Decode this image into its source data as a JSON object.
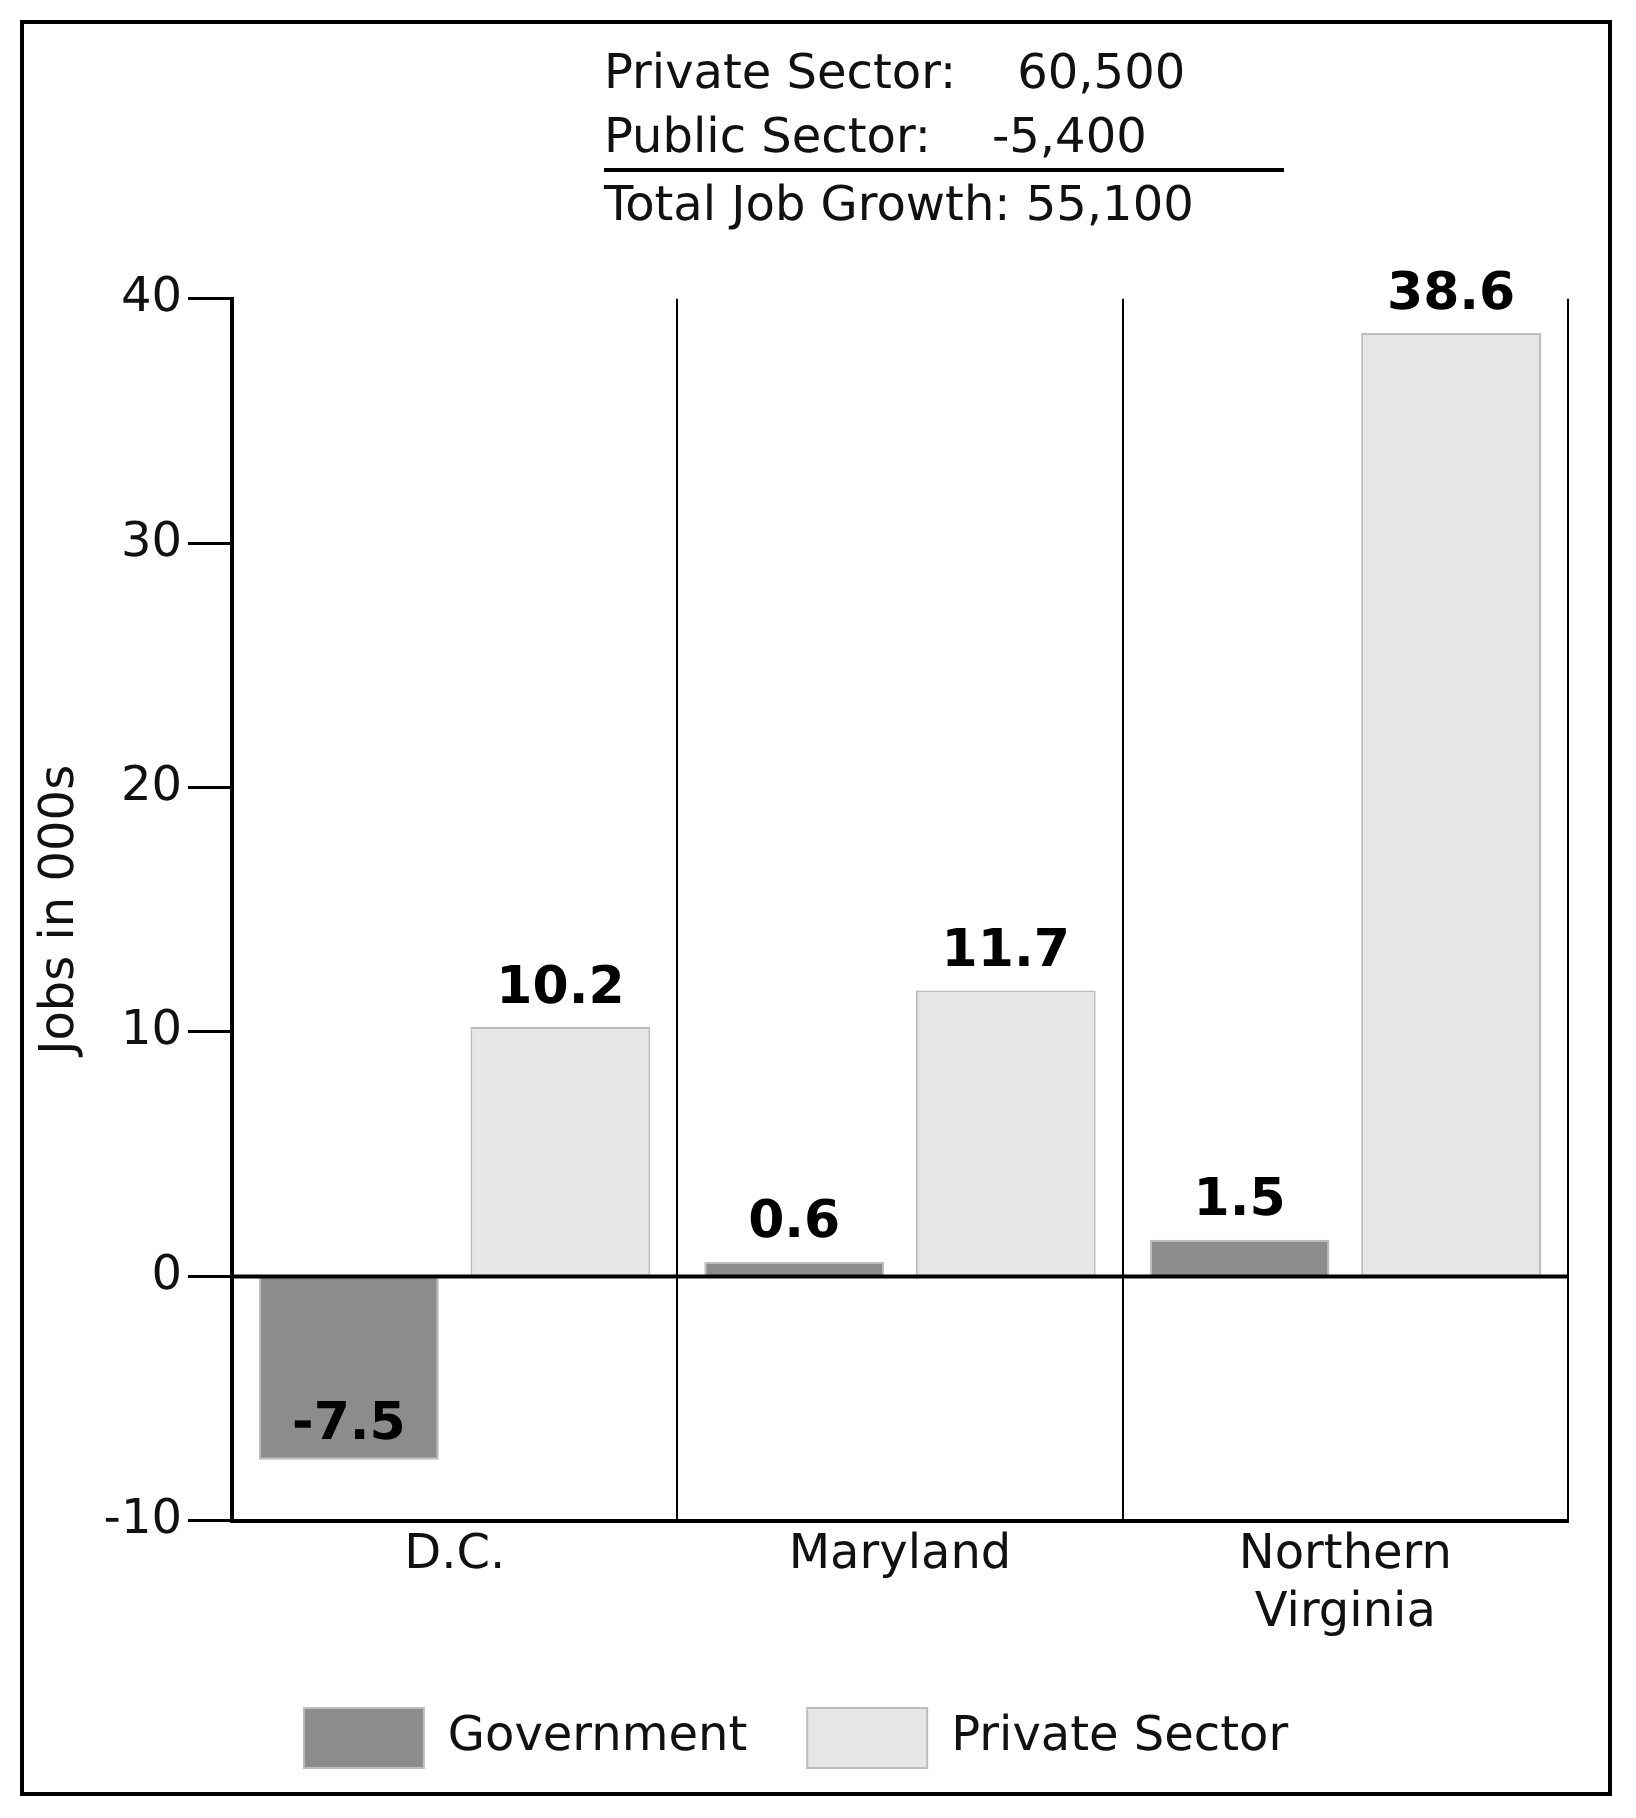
{
  "chart_data": {
    "type": "bar",
    "ylabel": "Jobs in 000s",
    "categories": [
      "D.C.",
      "Maryland",
      "Northern Virginia"
    ],
    "series": [
      {
        "name": "Government",
        "color": "#8c8c8c",
        "values": [
          -7.5,
          0.6,
          1.5
        ]
      },
      {
        "name": "Private Sector",
        "color": "#e6e6e6",
        "values": [
          10.2,
          11.7,
          38.6
        ]
      }
    ],
    "ylim": [
      -10,
      40
    ],
    "yticks": [
      -10,
      0,
      10,
      20,
      30,
      40
    ],
    "data_labels": true,
    "grid": "x",
    "legend": "bottom",
    "annotations": [
      "Private Sector:    60,500",
      "Public Sector:    -5,400",
      "Total Job Growth: 55,100"
    ]
  }
}
